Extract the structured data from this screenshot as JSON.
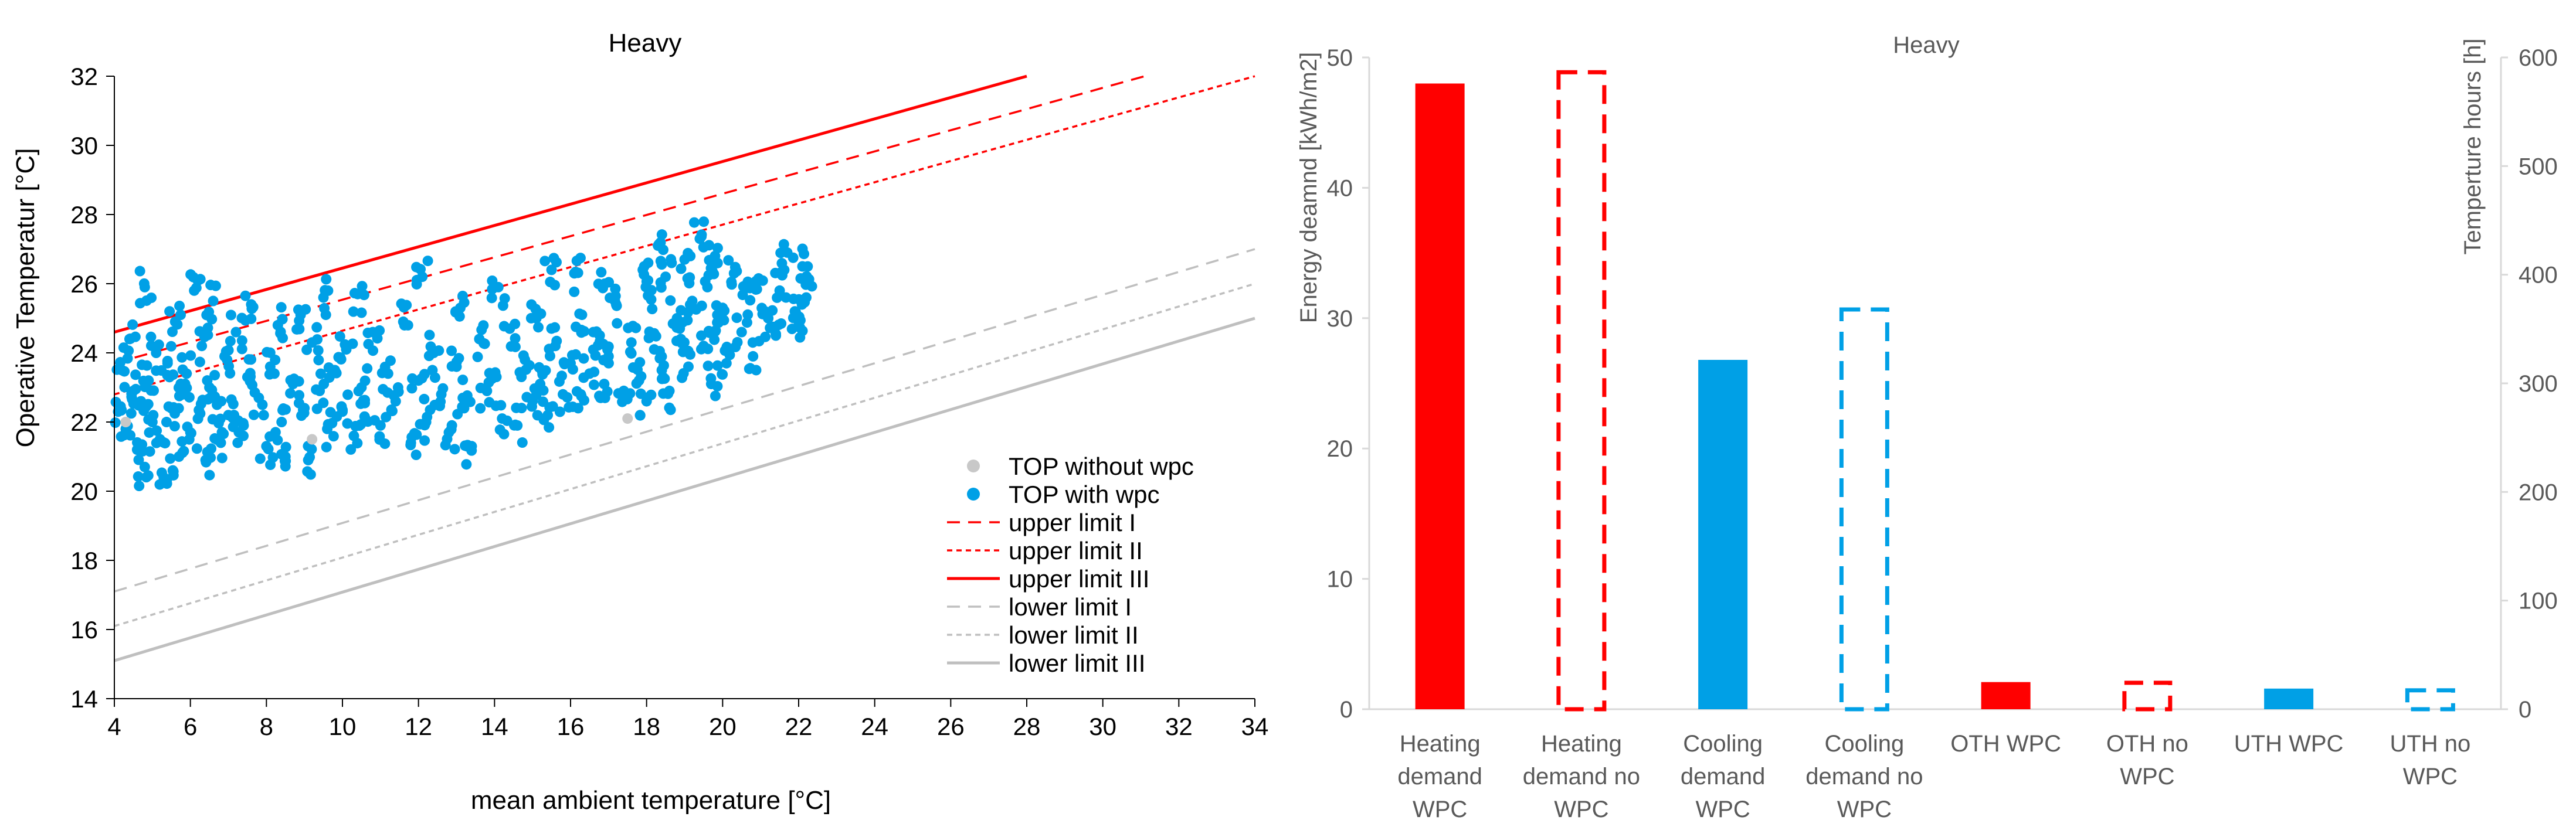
{
  "chart_data": [
    {
      "type": "scatter",
      "title": "Heavy",
      "xlabel": "mean  ambient  temperature  [°C]",
      "ylabel": "Operative Temperatur [°C]",
      "xlim": [
        4,
        34
      ],
      "ylim": [
        14,
        32
      ],
      "xticks": [
        4,
        6,
        8,
        10,
        12,
        14,
        16,
        18,
        20,
        22,
        24,
        26,
        28,
        30,
        32,
        34
      ],
      "yticks": [
        14,
        16,
        18,
        20,
        22,
        24,
        26,
        28,
        30,
        32
      ],
      "legend_position": "bottom-right",
      "colors": {
        "with_wpc": "#00A0E6",
        "without_wpc": "#C8C8C8",
        "upper": "#FF0000",
        "lower": "#BFBFBF"
      },
      "scatter_series": [
        {
          "name": "TOP without wpc",
          "color": "#C8C8C8",
          "points": [
            [
              4.3,
              22.0
            ],
            [
              17.5,
              22.1
            ],
            [
              9.2,
              21.5
            ]
          ]
        },
        {
          "name": "TOP with wpc",
          "color": "#00A0E6",
          "points": [
            [
              4.1,
              22.3
            ],
            [
              4.2,
              23.5
            ],
            [
              4.3,
              21.8
            ],
            [
              4.4,
              24.4
            ],
            [
              4.5,
              22.9
            ],
            [
              4.6,
              21.2
            ],
            [
              4.7,
              22.6
            ],
            [
              4.8,
              25.9
            ],
            [
              4.8,
              20.7
            ],
            [
              4.9,
              23.2
            ],
            [
              5.0,
              22.0
            ],
            [
              5.1,
              24.0
            ],
            [
              5.2,
              21.5
            ],
            [
              5.3,
              20.4
            ],
            [
              5.4,
              23.7
            ],
            [
              5.5,
              22.4
            ],
            [
              5.6,
              24.9
            ],
            [
              5.7,
              21.0
            ],
            [
              5.8,
              22.8
            ],
            [
              5.9,
              23.4
            ],
            [
              6.0,
              21.7
            ],
            [
              6.1,
              25.8
            ],
            [
              6.2,
              22.1
            ],
            [
              6.3,
              24.2
            ],
            [
              6.4,
              20.9
            ],
            [
              6.5,
              23.0
            ],
            [
              6.6,
              25.5
            ],
            [
              6.7,
              22.5
            ],
            [
              6.8,
              21.4
            ],
            [
              6.9,
              23.9
            ],
            [
              7.0,
              22.2
            ],
            [
              7.2,
              24.6
            ],
            [
              7.4,
              21.9
            ],
            [
              7.5,
              23.3
            ],
            [
              7.6,
              25.4
            ],
            [
              7.8,
              22.7
            ],
            [
              8.0,
              21.3
            ],
            [
              8.1,
              23.6
            ],
            [
              8.3,
              24.8
            ],
            [
              8.4,
              22.0
            ],
            [
              8.5,
              21.0
            ],
            [
              8.7,
              23.1
            ],
            [
              8.9,
              25.1
            ],
            [
              9.0,
              22.4
            ],
            [
              9.1,
              20.9
            ],
            [
              9.2,
              24.3
            ],
            [
              9.4,
              22.9
            ],
            [
              9.5,
              25.6
            ],
            [
              9.6,
              21.8
            ],
            [
              9.8,
              23.5
            ],
            [
              10.0,
              22.3
            ],
            [
              10.1,
              24.1
            ],
            [
              10.3,
              21.6
            ],
            [
              10.4,
              25.7
            ],
            [
              10.5,
              23.0
            ],
            [
              10.6,
              22.1
            ],
            [
              10.8,
              24.6
            ],
            [
              11.0,
              21.9
            ],
            [
              11.2,
              23.4
            ],
            [
              11.4,
              22.6
            ],
            [
              11.6,
              24.9
            ],
            [
              11.8,
              21.4
            ],
            [
              12.0,
              23.2
            ],
            [
              12.1,
              26.2
            ],
            [
              12.2,
              22.0
            ],
            [
              12.4,
              24.0
            ],
            [
              12.6,
              22.8
            ],
            [
              12.8,
              21.7
            ],
            [
              13.0,
              23.6
            ],
            [
              13.1,
              25.3
            ],
            [
              13.2,
              22.4
            ],
            [
              13.4,
              21.3
            ],
            [
              13.6,
              24.4
            ],
            [
              13.8,
              22.9
            ],
            [
              14.0,
              23.3
            ],
            [
              14.1,
              25.9
            ],
            [
              14.2,
              22.1
            ],
            [
              14.4,
              24.7
            ],
            [
              14.6,
              21.9
            ],
            [
              14.8,
              23.8
            ],
            [
              15.0,
              22.6
            ],
            [
              15.1,
              25.0
            ],
            [
              15.2,
              23.1
            ],
            [
              15.4,
              22.2
            ],
            [
              15.5,
              26.4
            ],
            [
              15.6,
              24.2
            ],
            [
              15.8,
              22.8
            ],
            [
              16.0,
              23.7
            ],
            [
              16.1,
              26.3
            ],
            [
              16.2,
              22.4
            ],
            [
              16.3,
              25.1
            ],
            [
              16.5,
              23.4
            ],
            [
              16.6,
              24.6
            ],
            [
              16.8,
              22.7
            ],
            [
              16.9,
              26.0
            ],
            [
              17.0,
              23.9
            ],
            [
              17.2,
              25.4
            ],
            [
              17.4,
              22.9
            ],
            [
              17.6,
              24.3
            ],
            [
              17.8,
              23.2
            ],
            [
              17.9,
              26.4
            ],
            [
              18.0,
              22.6
            ],
            [
              18.1,
              25.8
            ],
            [
              18.2,
              24.1
            ],
            [
              18.3,
              27.1
            ],
            [
              18.4,
              23.5
            ],
            [
              18.5,
              26.2
            ],
            [
              18.6,
              22.9
            ],
            [
              18.8,
              25.0
            ],
            [
              18.9,
              24.4
            ],
            [
              19.0,
              26.7
            ],
            [
              19.1,
              23.6
            ],
            [
              19.2,
              25.5
            ],
            [
              19.4,
              27.3
            ],
            [
              19.5,
              24.2
            ],
            [
              19.6,
              25.9
            ],
            [
              19.7,
              23.1
            ],
            [
              19.8,
              26.8
            ],
            [
              19.9,
              24.9
            ],
            [
              20.0,
              25.3
            ],
            [
              20.1,
              23.7
            ],
            [
              20.3,
              26.3
            ],
            [
              20.5,
              24.6
            ],
            [
              20.6,
              25.9
            ],
            [
              20.8,
              23.9
            ],
            [
              21.0,
              26.1
            ],
            [
              21.2,
              25.0
            ],
            [
              21.4,
              24.5
            ],
            [
              21.5,
              25.8
            ],
            [
              21.7,
              26.9
            ],
            [
              21.9,
              25.2
            ],
            [
              22.0,
              24.8
            ],
            [
              22.1,
              26.5
            ],
            [
              22.2,
              25.6
            ]
          ]
        }
      ],
      "line_series": [
        {
          "name": "upper limit  I",
          "color": "#FF0000",
          "style": "dash",
          "x": [
            4,
            31.1
          ],
          "y": [
            23.7,
            32
          ]
        },
        {
          "name": "upper limit  II",
          "color": "#FF0000",
          "style": "dot",
          "x": [
            4,
            34
          ],
          "y": [
            22.8,
            32
          ]
        },
        {
          "name": "upper limit  III",
          "color": "#FF0000",
          "style": "solid",
          "x": [
            4,
            28
          ],
          "y": [
            24.6,
            32
          ]
        },
        {
          "name": "lower limit I",
          "color": "#BFBFBF",
          "style": "dash",
          "x": [
            4,
            34
          ],
          "y": [
            17.1,
            27
          ]
        },
        {
          "name": "lower limit II",
          "color": "#BFBFBF",
          "style": "dot",
          "x": [
            4,
            34
          ],
          "y": [
            16.1,
            26
          ]
        },
        {
          "name": "lower limit III",
          "color": "#BFBFBF",
          "style": "solid",
          "x": [
            4,
            34
          ],
          "y": [
            15.1,
            25
          ]
        }
      ],
      "legend": [
        {
          "label": "TOP without wpc",
          "marker": "dot",
          "color": "#C8C8C8"
        },
        {
          "label": "TOP with wpc",
          "marker": "dot",
          "color": "#00A0E6"
        },
        {
          "label": "upper limit  I",
          "marker": "dash",
          "color": "#FF0000"
        },
        {
          "label": "upper limit  II",
          "marker": "dot-line",
          "color": "#FF0000"
        },
        {
          "label": "upper limit  III",
          "marker": "solid",
          "color": "#FF0000"
        },
        {
          "label": "lower limit I",
          "marker": "dash",
          "color": "#BFBFBF"
        },
        {
          "label": "lower limit II",
          "marker": "dot-line",
          "color": "#BFBFBF"
        },
        {
          "label": "lower limit III",
          "marker": "solid",
          "color": "#BFBFBF"
        }
      ]
    },
    {
      "type": "bar",
      "title": "Heavy",
      "ylabel": "Energy deamnd [kWh/m2]",
      "y2label": "Temperture hours [h]",
      "ylim": [
        0,
        50
      ],
      "y2lim": [
        0,
        600
      ],
      "yticks": [
        0,
        10,
        20,
        30,
        40,
        50
      ],
      "y2ticks": [
        0,
        100,
        200,
        300,
        400,
        500,
        600
      ],
      "bars": [
        {
          "label": [
            "Heating",
            "demand",
            "WPC"
          ],
          "value": 48.0,
          "axis": "left",
          "color": "#FF0000",
          "style": "filled"
        },
        {
          "label": [
            "Heating",
            "demand no",
            "WPC"
          ],
          "value": 49.0,
          "axis": "left",
          "color": "#FF0000",
          "style": "dashed"
        },
        {
          "label": [
            "Cooling",
            "demand",
            "WPC"
          ],
          "value": 26.8,
          "axis": "left",
          "color": "#00A0E6",
          "style": "filled"
        },
        {
          "label": [
            "Cooling",
            "demand no",
            "WPC"
          ],
          "value": 30.8,
          "axis": "left",
          "color": "#00A0E6",
          "style": "dashed"
        },
        {
          "label": [
            "OTH WPC"
          ],
          "value": 25,
          "axis": "right",
          "color": "#FF0000",
          "style": "filled"
        },
        {
          "label": [
            "OTH no",
            "WPC"
          ],
          "value": 26,
          "axis": "right",
          "color": "#FF0000",
          "style": "dashed"
        },
        {
          "label": [
            "UTH WPC"
          ],
          "value": 19,
          "axis": "right",
          "color": "#00A0E6",
          "style": "filled"
        },
        {
          "label": [
            "UTH no",
            "WPC"
          ],
          "value": 19,
          "axis": "right",
          "color": "#00A0E6",
          "style": "dashed"
        }
      ]
    }
  ]
}
